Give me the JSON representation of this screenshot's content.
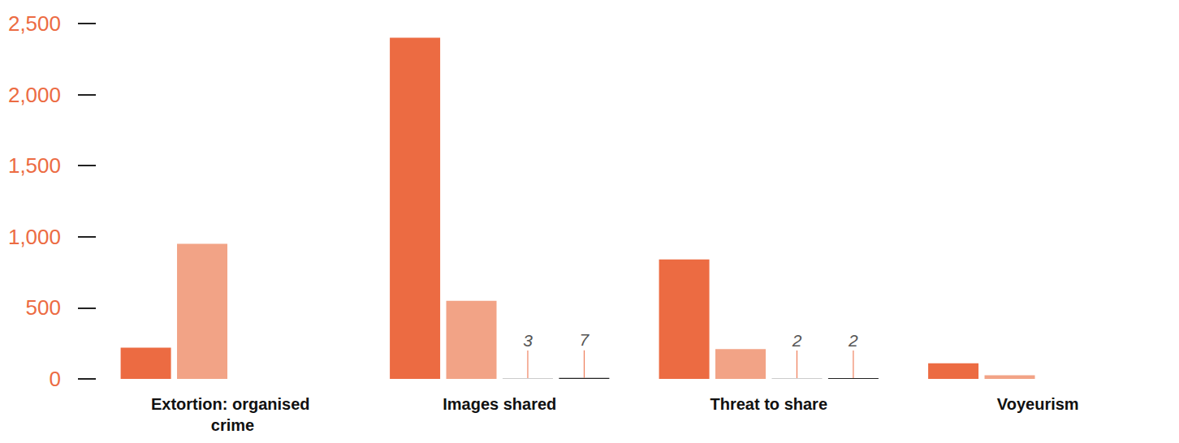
{
  "chart_data": {
    "type": "bar",
    "categories": [
      "Extortion: organised crime",
      "Images shared",
      "Threat to share",
      "Voyeurism"
    ],
    "series": [
      {
        "color": "#EC6B42",
        "values": [
          220,
          2400,
          840,
          110
        ]
      },
      {
        "color": "#F2A386",
        "values": [
          950,
          550,
          210,
          25
        ]
      },
      {
        "color": "#CCCCCC",
        "values": [
          null,
          3,
          2,
          null
        ],
        "data_labels": true
      },
      {
        "color": "#222222",
        "values": [
          null,
          7,
          2,
          null
        ],
        "data_labels": true
      }
    ],
    "ylim": [
      0,
      2500
    ],
    "yticks": [
      0,
      500,
      1000,
      1500,
      2000,
      2500
    ],
    "grid": false
  }
}
